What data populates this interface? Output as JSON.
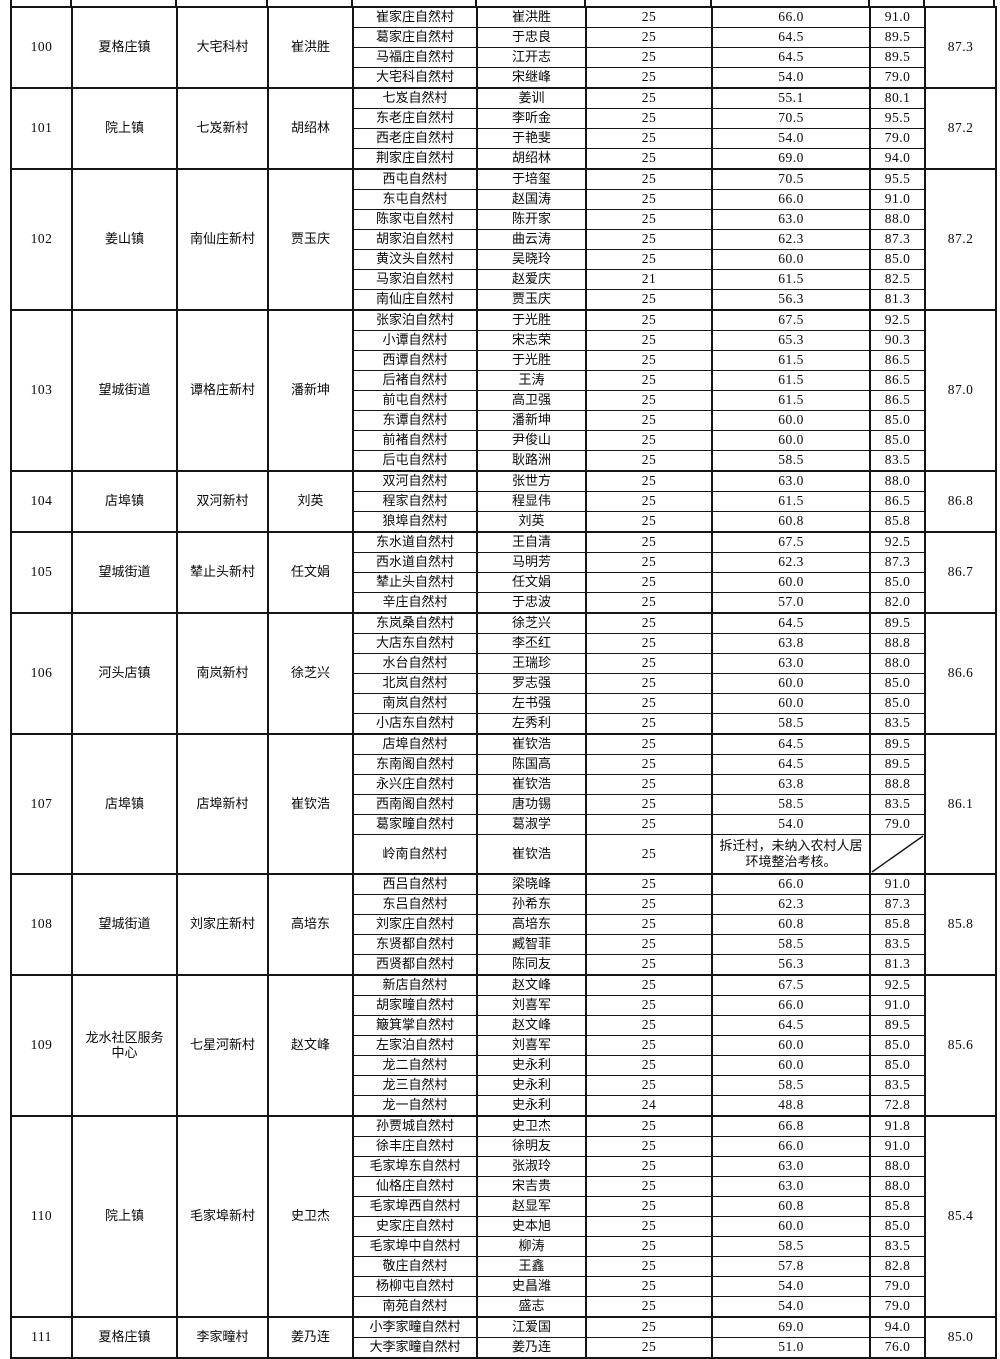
{
  "table": {
    "groups": [
      {
        "rank": "100",
        "town": "夏格庄镇",
        "village": "大宅科村",
        "leader": "崔洪胜",
        "overall": "87.3",
        "rows": [
          {
            "name": "崔家庄自然村",
            "head": "崔洪胜",
            "count": "25",
            "s1": "66.0",
            "s2": "91.0"
          },
          {
            "name": "葛家庄自然村",
            "head": "于忠良",
            "count": "25",
            "s1": "64.5",
            "s2": "89.5"
          },
          {
            "name": "马福庄自然村",
            "head": "江开志",
            "count": "25",
            "s1": "64.5",
            "s2": "89.5"
          },
          {
            "name": "大宅科自然村",
            "head": "宋继峰",
            "count": "25",
            "s1": "54.0",
            "s2": "79.0"
          }
        ]
      },
      {
        "rank": "101",
        "town": "院上镇",
        "village": "七岌新村",
        "leader": "胡绍林",
        "overall": "87.2",
        "rows": [
          {
            "name": "七岌自然村",
            "head": "姜训",
            "count": "25",
            "s1": "55.1",
            "s2": "80.1"
          },
          {
            "name": "东老庄自然村",
            "head": "李听金",
            "count": "25",
            "s1": "70.5",
            "s2": "95.5"
          },
          {
            "name": "西老庄自然村",
            "head": "于艳斐",
            "count": "25",
            "s1": "54.0",
            "s2": "79.0"
          },
          {
            "name": "荆家庄自然村",
            "head": "胡绍林",
            "count": "25",
            "s1": "69.0",
            "s2": "94.0"
          }
        ]
      },
      {
        "rank": "102",
        "town": "姜山镇",
        "village": "南仙庄新村",
        "leader": "贾玉庆",
        "overall": "87.2",
        "rows": [
          {
            "name": "西屯自然村",
            "head": "于培玺",
            "count": "25",
            "s1": "70.5",
            "s2": "95.5"
          },
          {
            "name": "东屯自然村",
            "head": "赵国涛",
            "count": "25",
            "s1": "66.0",
            "s2": "91.0"
          },
          {
            "name": "陈家屯自然村",
            "head": "陈开家",
            "count": "25",
            "s1": "63.0",
            "s2": "88.0"
          },
          {
            "name": "胡家泊自然村",
            "head": "曲云涛",
            "count": "25",
            "s1": "62.3",
            "s2": "87.3"
          },
          {
            "name": "黄汶头自然村",
            "head": "吴晓玲",
            "count": "25",
            "s1": "60.0",
            "s2": "85.0"
          },
          {
            "name": "马家泊自然村",
            "head": "赵爱庆",
            "count": "21",
            "s1": "61.5",
            "s2": "82.5"
          },
          {
            "name": "南仙庄自然村",
            "head": "贾玉庆",
            "count": "25",
            "s1": "56.3",
            "s2": "81.3"
          }
        ]
      },
      {
        "rank": "103",
        "town": "望城街道",
        "village": "谭格庄新村",
        "leader": "潘新坤",
        "overall": "87.0",
        "rows": [
          {
            "name": "张家泊自然村",
            "head": "于光胜",
            "count": "25",
            "s1": "67.5",
            "s2": "92.5"
          },
          {
            "name": "小谭自然村",
            "head": "宋志荣",
            "count": "25",
            "s1": "65.3",
            "s2": "90.3"
          },
          {
            "name": "西谭自然村",
            "head": "于光胜",
            "count": "25",
            "s1": "61.5",
            "s2": "86.5"
          },
          {
            "name": "后褚自然村",
            "head": "王涛",
            "count": "25",
            "s1": "61.5",
            "s2": "86.5"
          },
          {
            "name": "前屯自然村",
            "head": "高卫强",
            "count": "25",
            "s1": "61.5",
            "s2": "86.5"
          },
          {
            "name": "东谭自然村",
            "head": "潘新坤",
            "count": "25",
            "s1": "60.0",
            "s2": "85.0"
          },
          {
            "name": "前褚自然村",
            "head": "尹俊山",
            "count": "25",
            "s1": "60.0",
            "s2": "85.0"
          },
          {
            "name": "后屯自然村",
            "head": "耿路洲",
            "count": "25",
            "s1": "58.5",
            "s2": "83.5"
          }
        ]
      },
      {
        "rank": "104",
        "town": "店埠镇",
        "village": "双河新村",
        "leader": "刘英",
        "overall": "86.8",
        "rows": [
          {
            "name": "双河自然村",
            "head": "张世方",
            "count": "25",
            "s1": "63.0",
            "s2": "88.0"
          },
          {
            "name": "程家自然村",
            "head": "程显伟",
            "count": "25",
            "s1": "61.5",
            "s2": "86.5"
          },
          {
            "name": "狼埠自然村",
            "head": "刘英",
            "count": "25",
            "s1": "60.8",
            "s2": "85.8"
          }
        ]
      },
      {
        "rank": "105",
        "town": "望城街道",
        "village": "辇止头新村",
        "leader": "任文娟",
        "overall": "86.7",
        "rows": [
          {
            "name": "东水道自然村",
            "head": "王自清",
            "count": "25",
            "s1": "67.5",
            "s2": "92.5"
          },
          {
            "name": "西水道自然村",
            "head": "马明芳",
            "count": "25",
            "s1": "62.3",
            "s2": "87.3"
          },
          {
            "name": "辇止头自然村",
            "head": "任文娟",
            "count": "25",
            "s1": "60.0",
            "s2": "85.0"
          },
          {
            "name": "辛庄自然村",
            "head": "于忠波",
            "count": "25",
            "s1": "57.0",
            "s2": "82.0"
          }
        ]
      },
      {
        "rank": "106",
        "town": "河头店镇",
        "village": "南岚新村",
        "leader": "徐芝兴",
        "overall": "86.6",
        "rows": [
          {
            "name": "东岚桑自然村",
            "head": "徐芝兴",
            "count": "25",
            "s1": "64.5",
            "s2": "89.5"
          },
          {
            "name": "大店东自然村",
            "head": "李丕红",
            "count": "25",
            "s1": "63.8",
            "s2": "88.8"
          },
          {
            "name": "水台自然村",
            "head": "王瑞珍",
            "count": "25",
            "s1": "63.0",
            "s2": "88.0"
          },
          {
            "name": "北岚自然村",
            "head": "罗志强",
            "count": "25",
            "s1": "60.0",
            "s2": "85.0"
          },
          {
            "name": "南岚自然村",
            "head": "左书强",
            "count": "25",
            "s1": "60.0",
            "s2": "85.0"
          },
          {
            "name": "小店东自然村",
            "head": "左秀利",
            "count": "25",
            "s1": "58.5",
            "s2": "83.5"
          }
        ]
      },
      {
        "rank": "107",
        "town": "店埠镇",
        "village": "店埠新村",
        "leader": "崔钦浩",
        "overall": "86.1",
        "rows": [
          {
            "name": "店埠自然村",
            "head": "崔钦浩",
            "count": "25",
            "s1": "64.5",
            "s2": "89.5"
          },
          {
            "name": "东南阁自然村",
            "head": "陈国高",
            "count": "25",
            "s1": "64.5",
            "s2": "89.5"
          },
          {
            "name": "永兴庄自然村",
            "head": "崔钦浩",
            "count": "25",
            "s1": "63.8",
            "s2": "88.8"
          },
          {
            "name": "西南阁自然村",
            "head": "唐功锡",
            "count": "25",
            "s1": "58.5",
            "s2": "83.5"
          },
          {
            "name": "葛家疃自然村",
            "head": "葛淑学",
            "count": "25",
            "s1": "54.0",
            "s2": "79.0"
          },
          {
            "name": "岭南自然村",
            "head": "崔钦浩",
            "count": "25",
            "note": "拆迁村，未纳入农村人居环境整治考核。",
            "diagonal": true,
            "tall": true
          }
        ]
      },
      {
        "rank": "108",
        "town": "望城街道",
        "village": "刘家庄新村",
        "leader": "高培东",
        "overall": "85.8",
        "rows": [
          {
            "name": "西吕自然村",
            "head": "梁晓峰",
            "count": "25",
            "s1": "66.0",
            "s2": "91.0"
          },
          {
            "name": "东吕自然村",
            "head": "孙希东",
            "count": "25",
            "s1": "62.3",
            "s2": "87.3"
          },
          {
            "name": "刘家庄自然村",
            "head": "高培东",
            "count": "25",
            "s1": "60.8",
            "s2": "85.8"
          },
          {
            "name": "东贤都自然村",
            "head": "臧智菲",
            "count": "25",
            "s1": "58.5",
            "s2": "83.5"
          },
          {
            "name": "西贤都自然村",
            "head": "陈同友",
            "count": "25",
            "s1": "56.3",
            "s2": "81.3"
          }
        ]
      },
      {
        "rank": "109",
        "town": "龙水社区服务中心",
        "village": "七星河新村",
        "leader": "赵文峰",
        "overall": "85.6",
        "rows": [
          {
            "name": "新店自然村",
            "head": "赵文峰",
            "count": "25",
            "s1": "67.5",
            "s2": "92.5"
          },
          {
            "name": "胡家疃自然村",
            "head": "刘喜军",
            "count": "25",
            "s1": "66.0",
            "s2": "91.0"
          },
          {
            "name": "簸箕掌自然村",
            "head": "赵文峰",
            "count": "25",
            "s1": "64.5",
            "s2": "89.5"
          },
          {
            "name": "左家泊自然村",
            "head": "刘喜军",
            "count": "25",
            "s1": "60.0",
            "s2": "85.0"
          },
          {
            "name": "龙二自然村",
            "head": "史永利",
            "count": "25",
            "s1": "60.0",
            "s2": "85.0"
          },
          {
            "name": "龙三自然村",
            "head": "史永利",
            "count": "25",
            "s1": "58.5",
            "s2": "83.5"
          },
          {
            "name": "龙一自然村",
            "head": "史永利",
            "count": "24",
            "s1": "48.8",
            "s2": "72.8"
          }
        ]
      },
      {
        "rank": "110",
        "town": "院上镇",
        "village": "毛家埠新村",
        "leader": "史卫杰",
        "overall": "85.4",
        "rows": [
          {
            "name": "孙贾城自然村",
            "head": "史卫杰",
            "count": "25",
            "s1": "66.8",
            "s2": "91.8"
          },
          {
            "name": "徐丰庄自然村",
            "head": "徐明友",
            "count": "25",
            "s1": "66.0",
            "s2": "91.0"
          },
          {
            "name": "毛家埠东自然村",
            "head": "张淑玲",
            "count": "25",
            "s1": "63.0",
            "s2": "88.0"
          },
          {
            "name": "仙格庄自然村",
            "head": "宋吉贵",
            "count": "25",
            "s1": "63.0",
            "s2": "88.0"
          },
          {
            "name": "毛家埠西自然村",
            "head": "赵显军",
            "count": "25",
            "s1": "60.8",
            "s2": "85.8"
          },
          {
            "name": "史家庄自然村",
            "head": "史本旭",
            "count": "25",
            "s1": "60.0",
            "s2": "85.0"
          },
          {
            "name": "毛家埠中自然村",
            "head": "柳涛",
            "count": "25",
            "s1": "58.5",
            "s2": "83.5"
          },
          {
            "name": "敬庄自然村",
            "head": "王鑫",
            "count": "25",
            "s1": "57.8",
            "s2": "82.8"
          },
          {
            "name": "杨柳屯自然村",
            "head": "史昌潍",
            "count": "25",
            "s1": "54.0",
            "s2": "79.0"
          },
          {
            "name": "南苑自然村",
            "head": "盛志",
            "count": "25",
            "s1": "54.0",
            "s2": "79.0"
          }
        ]
      },
      {
        "rank": "111",
        "town": "夏格庄镇",
        "village": "李家疃村",
        "leader": "姜乃连",
        "overall": "85.0",
        "rows": [
          {
            "name": "小李家疃自然村",
            "head": "江爱国",
            "count": "25",
            "s1": "69.0",
            "s2": "94.0"
          },
          {
            "name": "大李家疃自然村",
            "head": "姜乃连",
            "count": "25",
            "s1": "51.0",
            "s2": "76.0"
          }
        ]
      }
    ]
  }
}
